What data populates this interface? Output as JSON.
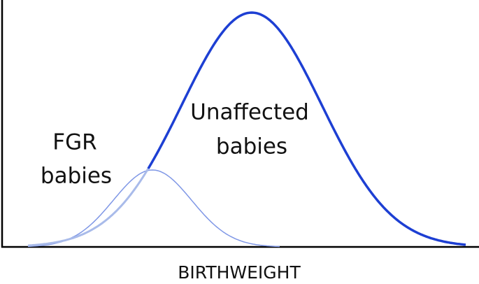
{
  "labels": {
    "fgr_line1": "FGR",
    "fgr_line2": "babies",
    "unaffected_line1": "Unaffected",
    "unaffected_line2": "babies"
  },
  "x_axis": {
    "label": "BIRTHWEIGHT"
  }
}
